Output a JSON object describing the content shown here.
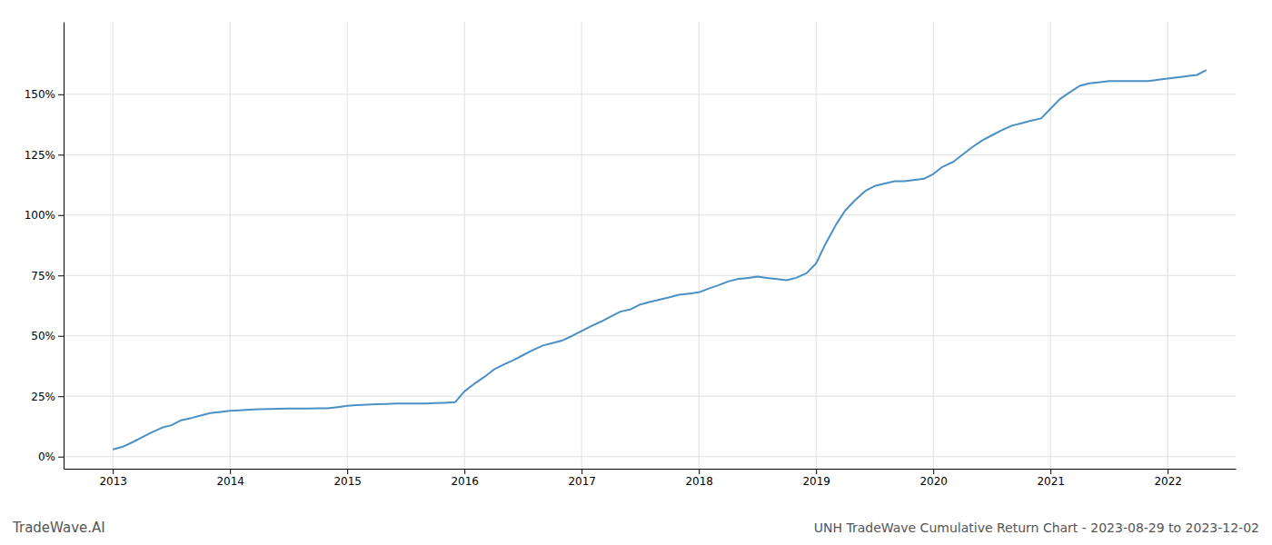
{
  "chart_data": {
    "type": "line",
    "title": "UNH TradeWave Cumulative Return Chart - 2023-08-29 to 2023-12-02",
    "annotations": [
      "TradeWave.AI"
    ],
    "color": "#4a90c4",
    "grid": true,
    "x": [
      2013.0,
      2013.08,
      2013.17,
      2013.25,
      2013.33,
      2013.42,
      2013.5,
      2013.58,
      2013.67,
      2013.75,
      2013.83,
      2013.92,
      2014.0,
      2014.08,
      2014.17,
      2014.25,
      2014.33,
      2014.42,
      2014.5,
      2014.58,
      2014.67,
      2014.75,
      2014.83,
      2014.92,
      2015.0,
      2015.08,
      2015.17,
      2015.25,
      2015.33,
      2015.42,
      2015.5,
      2015.58,
      2015.67,
      2015.75,
      2015.83,
      2015.92,
      2016.0,
      2016.08,
      2016.17,
      2016.25,
      2016.33,
      2016.42,
      2016.5,
      2016.58,
      2016.67,
      2016.75,
      2016.83,
      2016.92,
      2017.0,
      2017.08,
      2017.17,
      2017.25,
      2017.33,
      2017.42,
      2017.5,
      2017.58,
      2017.67,
      2017.75,
      2017.83,
      2017.92,
      2018.0,
      2018.08,
      2018.17,
      2018.25,
      2018.33,
      2018.42,
      2018.5,
      2018.58,
      2018.67,
      2018.75,
      2018.83,
      2018.92,
      2019.0,
      2019.08,
      2019.17,
      2019.25,
      2019.33,
      2019.42,
      2019.5,
      2019.58,
      2019.67,
      2019.75,
      2019.83,
      2019.92,
      2020.0,
      2020.08,
      2020.17,
      2020.25,
      2020.33,
      2020.42,
      2020.5,
      2020.58,
      2020.67,
      2020.75,
      2020.83,
      2020.92,
      2021.0,
      2021.08,
      2021.17,
      2021.25,
      2021.33,
      2021.42,
      2021.5,
      2021.58,
      2021.67,
      2021.75,
      2021.83,
      2021.92,
      2022.0,
      2022.08,
      2022.17,
      2022.25,
      2022.33
    ],
    "values": [
      0.03,
      0.04,
      0.06,
      0.08,
      0.1,
      0.12,
      0.13,
      0.15,
      0.16,
      0.17,
      0.18,
      0.185,
      0.19,
      0.192,
      0.194,
      0.196,
      0.197,
      0.198,
      0.199,
      0.199,
      0.199,
      0.2,
      0.2,
      0.205,
      0.21,
      0.213,
      0.215,
      0.217,
      0.218,
      0.22,
      0.22,
      0.22,
      0.22,
      0.222,
      0.223,
      0.225,
      0.27,
      0.3,
      0.33,
      0.36,
      0.38,
      0.4,
      0.42,
      0.44,
      0.46,
      0.47,
      0.48,
      0.5,
      0.52,
      0.54,
      0.56,
      0.58,
      0.6,
      0.61,
      0.63,
      0.64,
      0.65,
      0.66,
      0.67,
      0.675,
      0.68,
      0.695,
      0.71,
      0.725,
      0.735,
      0.74,
      0.745,
      0.74,
      0.735,
      0.73,
      0.74,
      0.76,
      0.8,
      0.88,
      0.96,
      1.02,
      1.06,
      1.1,
      1.12,
      1.13,
      1.14,
      1.14,
      1.145,
      1.15,
      1.17,
      1.2,
      1.22,
      1.25,
      1.28,
      1.31,
      1.33,
      1.35,
      1.37,
      1.38,
      1.39,
      1.4,
      1.44,
      1.48,
      1.51,
      1.535,
      1.545,
      1.55,
      1.555,
      1.555,
      1.555,
      1.555,
      1.555,
      1.56,
      1.565,
      1.57,
      1.575,
      1.58,
      1.6
    ],
    "xlim": [
      2012.58,
      2022.58
    ],
    "xticks": [
      2013,
      2014,
      2015,
      2016,
      2017,
      2018,
      2019,
      2020,
      2021,
      2022
    ],
    "ylim": [
      -0.05,
      1.8
    ],
    "yticks": [
      {
        "value": 0.0,
        "label": "0%"
      },
      {
        "value": 0.25,
        "label": "25%"
      },
      {
        "value": 0.5,
        "label": "50%"
      },
      {
        "value": 0.75,
        "label": "75%"
      },
      {
        "value": 1.0,
        "label": "100%"
      },
      {
        "value": 1.25,
        "label": "125%"
      },
      {
        "value": 1.5,
        "label": "150%"
      }
    ]
  }
}
